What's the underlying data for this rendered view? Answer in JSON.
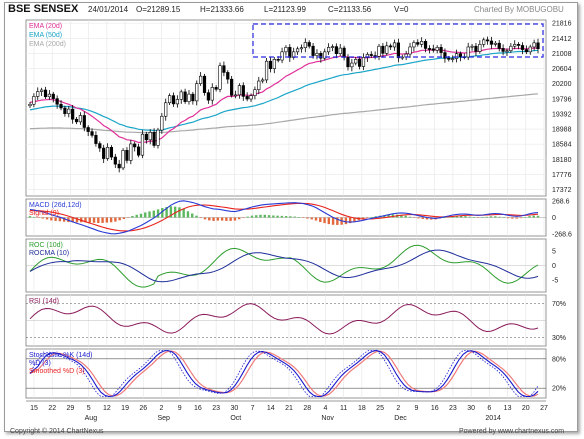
{
  "header": {
    "title": "BSE SENSEX",
    "date": "24/01/2014",
    "open": "O=21289.15",
    "high": "H=21333.66",
    "low": "L=21123.99",
    "close": "C=21133.56",
    "volume": "V=0",
    "credit": "Charted By MOBUGOBU"
  },
  "footer": {
    "copyright": "Copyright © 2014 ChartNexus",
    "powered": "Powered by www.chartnexus.com"
  },
  "colors": {
    "candle_up": "#000000",
    "ema20": "#e0309a",
    "ema50": "#1aa5c8",
    "ema200": "#a8a8a8",
    "macd": "#2a3bd6",
    "signal": "#e8231e",
    "hist_pos": "#5cb85c",
    "hist_neg": "#e2683c",
    "roc": "#2e9e2e",
    "rocma": "#1f2e9a",
    "rsi": "#8b1a5a",
    "stoch_k": "#1a1acd",
    "stoch_d": "#e82525",
    "stoch_sd": "#f07a7a",
    "box": "#2a2ae0"
  },
  "chart_data": [
    {
      "type": "candlestick",
      "panel": "price",
      "legend": [
        "EMA (20d)",
        "EMA (50d)",
        "EMA (200d)"
      ],
      "y_ticks": [
        21816,
        21412,
        21008,
        20604,
        20200,
        19796,
        19392,
        18988,
        18584,
        18180,
        17776,
        17372
      ],
      "ylim": [
        17200,
        21900
      ],
      "close": [
        19650,
        19860,
        19990,
        20030,
        19850,
        19920,
        19800,
        19650,
        19550,
        19400,
        19520,
        19250,
        19180,
        19350,
        19030,
        18920,
        18820,
        18600,
        18480,
        18200,
        18500,
        18240,
        18050,
        17950,
        18420,
        18150,
        18590,
        18510,
        18290,
        18850,
        18700,
        18900,
        18550,
        18960,
        19330,
        19690,
        19880,
        19660,
        19780,
        19980,
        19720,
        19920,
        19740,
        20200,
        20400,
        19960,
        19760,
        20100,
        20050,
        20680,
        20500,
        20320,
        19890,
        19900,
        20150,
        19860,
        19790,
        19880,
        20040,
        20270,
        20300,
        20800,
        20600,
        20850,
        20830,
        21050,
        21170,
        20900,
        21050,
        21130,
        21160,
        21300,
        21200,
        20950,
        21010,
        20880,
        21050,
        21170,
        21190,
        21000,
        21150,
        20900,
        20650,
        20750,
        20850,
        20660,
        20900,
        20980,
        20950,
        20930,
        21200,
        21010,
        21210,
        21180,
        21290,
        20890,
        20910,
        20990,
        21180,
        21300,
        21250,
        21330,
        21140,
        21130,
        21090,
        21170,
        21030,
        20880,
        20850,
        20870,
        21000,
        20920,
        20910,
        21180,
        21200,
        21060,
        21250,
        21370,
        21340,
        21250,
        21280,
        21140,
        21060,
        21080,
        21200,
        21250,
        21220,
        21110,
        21050,
        21180,
        21290,
        21133
      ],
      "ema20": [
        19700,
        19720,
        19740,
        19760,
        19770,
        19780,
        19770,
        19750,
        19720,
        19680,
        19650,
        19600,
        19550,
        19520,
        19460,
        19400,
        19330,
        19250,
        19170,
        19080,
        19020,
        18950,
        18870,
        18780,
        18750,
        18700,
        18690,
        18670,
        18630,
        18640,
        18640,
        18670,
        18660,
        18690,
        18750,
        18840,
        18940,
        19000,
        19080,
        19170,
        19220,
        19290,
        19330,
        19410,
        19500,
        19540,
        19560,
        19610,
        19650,
        19740,
        19810,
        19860,
        19860,
        19870,
        19900,
        19900,
        19890,
        19890,
        19910,
        19950,
        19980,
        20060,
        20110,
        20180,
        20240,
        20320,
        20400,
        20450,
        20510,
        20570,
        20620,
        20690,
        20740,
        20760,
        20790,
        20800,
        20830,
        20860,
        20890,
        20910,
        20930,
        20930,
        20910,
        20900,
        20900,
        20880,
        20880,
        20890,
        20900,
        20900,
        20930,
        20940,
        20960,
        20980,
        21010,
        21000,
        20990,
        21000,
        21010,
        21040,
        21060,
        21090,
        21090,
        21100,
        21100,
        21110,
        21100,
        21080,
        21060,
        21040,
        21040,
        21030,
        21020,
        21030,
        21050,
        21050,
        21070,
        21100,
        21120,
        21130,
        21140,
        21140,
        21130,
        21120,
        21130,
        21140,
        21140,
        21140,
        21130,
        21140,
        21150,
        21150
      ],
      "ema50": [
        19500,
        19520,
        19540,
        19560,
        19580,
        19590,
        19600,
        19600,
        19600,
        19590,
        19590,
        19570,
        19550,
        19540,
        19520,
        19490,
        19460,
        19420,
        19370,
        19320,
        19280,
        19230,
        19180,
        19120,
        19090,
        19050,
        19030,
        19010,
        18980,
        18970,
        18960,
        18960,
        18950,
        18950,
        18960,
        18990,
        19020,
        19040,
        19070,
        19100,
        19120,
        19150,
        19170,
        19210,
        19250,
        19280,
        19300,
        19330,
        19360,
        19410,
        19450,
        19480,
        19500,
        19520,
        19540,
        19560,
        19570,
        19590,
        19610,
        19640,
        19670,
        19710,
        19750,
        19790,
        19830,
        19880,
        19930,
        19970,
        20010,
        20050,
        20090,
        20140,
        20180,
        20210,
        20240,
        20270,
        20300,
        20330,
        20360,
        20390,
        20420,
        20440,
        20450,
        20470,
        20490,
        20500,
        20520,
        20540,
        20560,
        20580,
        20600,
        20620,
        20640,
        20660,
        20690,
        20700,
        20710,
        20730,
        20750,
        20770,
        20790,
        20810,
        20830,
        20840,
        20850,
        20870,
        20880,
        20880,
        20890,
        20890,
        20900,
        20910,
        20910,
        20920,
        20930,
        20940,
        20950,
        20970,
        20980,
        21000,
        21010,
        21020,
        21020,
        21030,
        21040,
        21050,
        21060,
        21060,
        21060,
        21070,
        21080,
        21090
      ],
      "ema200": [
        19000,
        19000,
        19005,
        19010,
        19010,
        19015,
        19015,
        19015,
        19015,
        19010,
        19010,
        19005,
        19000,
        19000,
        18995,
        18990,
        18985,
        18975,
        18965,
        18955,
        18950,
        18940,
        18930,
        18920,
        18915,
        18905,
        18905,
        18900,
        18895,
        18895,
        18895,
        18895,
        18895,
        18895,
        18900,
        18905,
        18915,
        18920,
        18930,
        18940,
        18945,
        18955,
        18960,
        18975,
        18985,
        18990,
        19000,
        19010,
        19015,
        19030,
        19040,
        19050,
        19055,
        19060,
        19070,
        19075,
        19080,
        19090,
        19095,
        19105,
        19115,
        19130,
        19140,
        19155,
        19170,
        19185,
        19200,
        19215,
        19230,
        19245,
        19260,
        19275,
        19290,
        19300,
        19315,
        19325,
        19340,
        19355,
        19370,
        19380,
        19395,
        19405,
        19415,
        19425,
        19435,
        19445,
        19455,
        19465,
        19475,
        19485,
        19500,
        19510,
        19520,
        19535,
        19545,
        19555,
        19565,
        19575,
        19585,
        19600,
        19610,
        19625,
        19635,
        19645,
        19655,
        19665,
        19675,
        19685,
        19695,
        19705,
        19715,
        19725,
        19735,
        19745,
        19755,
        19765,
        19775,
        19790,
        19800,
        19810,
        19820,
        19830,
        19840,
        19850,
        19860,
        19870,
        19880,
        19890,
        19900,
        19910,
        19920,
        19930
      ],
      "annotation": "dashed rectangle marking consolidation range"
    },
    {
      "type": "macd",
      "legend": [
        "MACD (26d,12d)",
        "Signal (9)"
      ],
      "y_ticks": [
        268.6,
        0,
        -268.6
      ],
      "macd": [
        130,
        120,
        105,
        90,
        70,
        45,
        25,
        5,
        -20,
        -45,
        -70,
        -95,
        -115,
        -140,
        -165,
        -190,
        -215,
        -235,
        -250,
        -262,
        -265,
        -255,
        -240,
        -220,
        -190,
        -160,
        -130,
        -90,
        -50,
        -10,
        40,
        95,
        150,
        200,
        235,
        262,
        270,
        260,
        245,
        225,
        200,
        175,
        155,
        140,
        135,
        125,
        110,
        100,
        95,
        110,
        130,
        150,
        170,
        185,
        200,
        210,
        215,
        220,
        225,
        230,
        235,
        238,
        240,
        235,
        225,
        210,
        190,
        160,
        120,
        80,
        40,
        0,
        -30,
        -55,
        -70,
        -75,
        -70,
        -60,
        -45,
        -30,
        -15,
        0,
        15,
        30,
        45,
        60,
        70,
        75,
        70,
        60,
        45,
        30,
        15,
        0,
        -10,
        -15,
        -5,
        10,
        25,
        40,
        50,
        55,
        55,
        50,
        40,
        35,
        40,
        50,
        60,
        65,
        60,
        50,
        35,
        25,
        20,
        25,
        40,
        60,
        75,
        80
      ],
      "signal": [
        110,
        112,
        110,
        105,
        98,
        88,
        75,
        60,
        42,
        22,
        0,
        -22,
        -45,
        -68,
        -90,
        -112,
        -134,
        -155,
        -175,
        -192,
        -205,
        -214,
        -218,
        -218,
        -212,
        -200,
        -185,
        -165,
        -140,
        -112,
        -80,
        -45,
        -5,
        35,
        75,
        112,
        143,
        168,
        186,
        198,
        203,
        203,
        198,
        190,
        180,
        170,
        160,
        150,
        140,
        135,
        134,
        137,
        143,
        151,
        160,
        170,
        180,
        190,
        198,
        206,
        214,
        220,
        226,
        230,
        229,
        225,
        218,
        205,
        186,
        163,
        137,
        108,
        80,
        52,
        28,
        8,
        -8,
        -18,
        -24,
        -25,
        -23,
        -18,
        -11,
        -3,
        6,
        16,
        27,
        37,
        44,
        48,
        47,
        43,
        37,
        29,
        21,
        14,
        10,
        10,
        13,
        18,
        24,
        30,
        35,
        38,
        39,
        38,
        38,
        40,
        43,
        47,
        49,
        49,
        46,
        42,
        37,
        34,
        35,
        40,
        47,
        54
      ]
    },
    {
      "type": "line",
      "legend": [
        "ROC (10d)",
        "ROCMA (10)"
      ],
      "y_ticks": [
        5,
        0,
        -5
      ],
      "ylim": [
        -9,
        9
      ]
    },
    {
      "type": "line",
      "legend": [
        "RSI (14d)"
      ],
      "y_ticks": [
        "70%",
        "30%"
      ],
      "ylim": [
        20,
        80
      ]
    },
    {
      "type": "line",
      "legend": [
        "Stochastic %K (14d)",
        "%D (3)",
        "Smoothed %D (3)"
      ],
      "y_ticks": [
        "80%",
        "20%"
      ],
      "ylim": [
        0,
        100
      ]
    },
    {
      "type": "date_axis",
      "tick_labels": [
        "15",
        "22",
        "29",
        "5",
        "12",
        "19",
        "26",
        "2",
        "9",
        "16",
        "23",
        "30",
        "7",
        "14",
        "21",
        "28",
        "4",
        "11",
        "18",
        "25",
        "2",
        "9",
        "16",
        "23",
        "30",
        "6",
        "13",
        "20",
        "27"
      ],
      "month_labels": [
        "Aug",
        "Sep",
        "Oct",
        "Nov",
        "Dec",
        "2014"
      ]
    }
  ]
}
